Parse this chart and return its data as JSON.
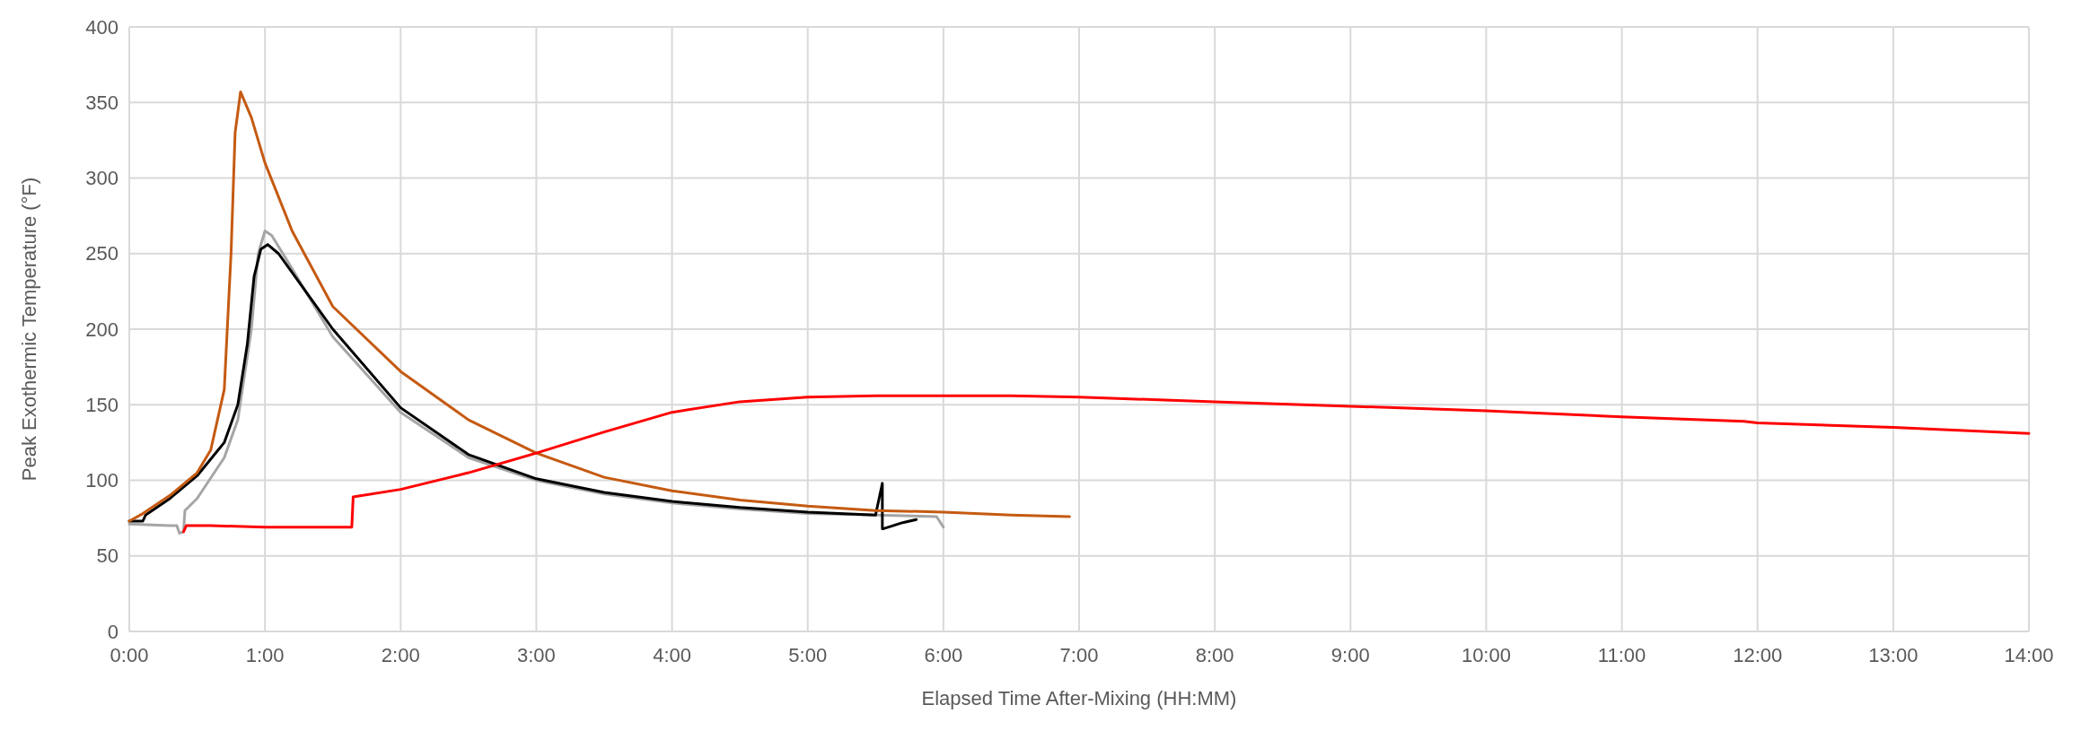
{
  "chart_data": {
    "type": "line",
    "xlabel": "Elapsed Time After-Mixing (HH:MM)",
    "ylabel": "Peak Exothermic Temperature (°F)",
    "xlim": [
      0,
      14
    ],
    "xticks": [
      {
        "value": 0,
        "label": "0:00"
      },
      {
        "value": 1,
        "label": "1:00"
      },
      {
        "value": 2,
        "label": "2:00"
      },
      {
        "value": 3,
        "label": "3:00"
      },
      {
        "value": 4,
        "label": "4:00"
      },
      {
        "value": 5,
        "label": "5:00"
      },
      {
        "value": 6,
        "label": "6:00"
      },
      {
        "value": 7,
        "label": "7:00"
      },
      {
        "value": 8,
        "label": "8:00"
      },
      {
        "value": 9,
        "label": "9:00"
      },
      {
        "value": 10,
        "label": "10:00"
      },
      {
        "value": 11,
        "label": "11:00"
      },
      {
        "value": 12,
        "label": "12:00"
      },
      {
        "value": 13,
        "label": "13:00"
      },
      {
        "value": 14,
        "label": "14:00"
      }
    ],
    "ylim": [
      0,
      400
    ],
    "yticks": [
      0,
      50,
      100,
      150,
      200,
      250,
      300,
      350,
      400
    ],
    "grid": true,
    "marker": "none",
    "line_style": "solid",
    "series": [
      {
        "color": "#a5a5a5",
        "x": [
          0,
          0.3,
          0.35,
          0.37,
          0.4,
          0.41,
          0.5,
          0.7,
          0.8,
          0.9,
          0.95,
          1.0,
          1.05,
          1.2,
          1.5,
          2.0,
          2.5,
          3.0,
          3.5,
          4.0,
          4.5,
          5.0,
          5.5,
          5.95,
          6.0
        ],
        "values": [
          71,
          70,
          70,
          65,
          66,
          80,
          88,
          115,
          140,
          200,
          250,
          265,
          262,
          240,
          195,
          145,
          115,
          100,
          91,
          85,
          81,
          78,
          77,
          76,
          69
        ]
      },
      {
        "color": "#000000",
        "x": [
          0,
          0.1,
          0.12,
          0.3,
          0.5,
          0.7,
          0.8,
          0.87,
          0.92,
          0.97,
          1.02,
          1.1,
          1.3,
          1.5,
          2.0,
          2.5,
          3.0,
          3.5,
          4.0,
          4.5,
          5.0,
          5.5,
          5.55,
          5.55,
          5.56,
          5.7,
          5.8
        ],
        "values": [
          73,
          73,
          77,
          88,
          103,
          125,
          150,
          190,
          235,
          253,
          256,
          250,
          225,
          200,
          148,
          117,
          101,
          92,
          86,
          82,
          79,
          77,
          98,
          68,
          68,
          72,
          74
        ]
      },
      {
        "color": "#c55a11",
        "x": [
          0,
          0.1,
          0.3,
          0.5,
          0.6,
          0.7,
          0.75,
          0.78,
          0.82,
          0.9,
          1.0,
          1.2,
          1.5,
          2.0,
          2.5,
          3.0,
          3.5,
          4.0,
          4.5,
          5.0,
          5.5,
          6.0,
          6.5,
          6.93
        ],
        "values": [
          73,
          78,
          90,
          105,
          120,
          160,
          250,
          330,
          357,
          340,
          310,
          265,
          215,
          172,
          140,
          118,
          102,
          93,
          87,
          83,
          80,
          79,
          77,
          76
        ]
      },
      {
        "color": "#ff0000",
        "x": [
          0.4,
          0.42,
          0.6,
          1.0,
          1.5,
          1.64,
          1.65,
          2.0,
          2.5,
          3.0,
          3.5,
          4.0,
          4.5,
          5.0,
          5.5,
          6.0,
          6.5,
          7.0,
          8.0,
          9.0,
          10.0,
          11.0,
          11.9,
          12.0,
          13.0,
          14.0
        ],
        "values": [
          66,
          70,
          70,
          69,
          69,
          69,
          89,
          94,
          105,
          118,
          132,
          145,
          152,
          155,
          156,
          156,
          156,
          155,
          152,
          149,
          146,
          142,
          139,
          138,
          135,
          131
        ]
      }
    ]
  }
}
